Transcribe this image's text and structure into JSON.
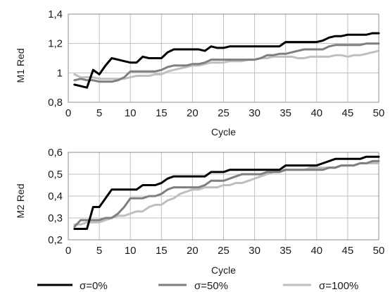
{
  "chart_data": [
    {
      "type": "line",
      "title": "",
      "xlabel": "Cycle",
      "ylabel": "M1 Red",
      "xlim": [
        0,
        50
      ],
      "ylim": [
        0.8,
        1.4
      ],
      "xticks": [
        "0",
        "5",
        "10",
        "15",
        "20",
        "25",
        "30",
        "35",
        "40",
        "45",
        "50"
      ],
      "yticks": [
        "0,8",
        "1",
        "1,2",
        "1,4"
      ],
      "grid": true,
      "series": [
        {
          "name": "σ=0%",
          "color": "#000000",
          "x": [
            1,
            2,
            3,
            4,
            5,
            6,
            7,
            8,
            9,
            10,
            11,
            12,
            13,
            14,
            15,
            16,
            17,
            18,
            19,
            20,
            21,
            22,
            23,
            24,
            25,
            26,
            27,
            28,
            29,
            30,
            31,
            32,
            33,
            34,
            35,
            36,
            37,
            38,
            39,
            40,
            41,
            42,
            43,
            44,
            45,
            46,
            47,
            48,
            49,
            50
          ],
          "y": [
            0.92,
            0.91,
            0.9,
            1.02,
            0.99,
            1.05,
            1.1,
            1.09,
            1.08,
            1.07,
            1.07,
            1.11,
            1.1,
            1.1,
            1.1,
            1.14,
            1.16,
            1.16,
            1.16,
            1.16,
            1.16,
            1.15,
            1.18,
            1.17,
            1.17,
            1.18,
            1.18,
            1.18,
            1.18,
            1.18,
            1.18,
            1.18,
            1.18,
            1.18,
            1.21,
            1.21,
            1.21,
            1.21,
            1.21,
            1.21,
            1.22,
            1.24,
            1.25,
            1.25,
            1.26,
            1.26,
            1.26,
            1.26,
            1.27,
            1.27
          ]
        },
        {
          "name": "σ=50%",
          "color": "#7f7f7f",
          "x": [
            1,
            2,
            3,
            4,
            5,
            6,
            7,
            8,
            9,
            10,
            11,
            12,
            13,
            14,
            15,
            16,
            17,
            18,
            19,
            20,
            21,
            22,
            23,
            24,
            25,
            26,
            27,
            28,
            29,
            30,
            31,
            32,
            33,
            34,
            35,
            36,
            37,
            38,
            39,
            40,
            41,
            42,
            43,
            44,
            45,
            46,
            47,
            48,
            49,
            50
          ],
          "y": [
            0.95,
            0.96,
            0.95,
            0.95,
            0.94,
            0.94,
            0.94,
            0.95,
            0.97,
            1.01,
            1.01,
            1.01,
            1.01,
            1.01,
            1.02,
            1.04,
            1.05,
            1.05,
            1.05,
            1.06,
            1.06,
            1.07,
            1.09,
            1.09,
            1.09,
            1.09,
            1.09,
            1.09,
            1.09,
            1.09,
            1.1,
            1.12,
            1.12,
            1.13,
            1.13,
            1.14,
            1.15,
            1.16,
            1.16,
            1.16,
            1.16,
            1.18,
            1.19,
            1.19,
            1.19,
            1.19,
            1.19,
            1.2,
            1.2,
            1.2
          ]
        },
        {
          "name": "σ=100%",
          "color": "#bfbfbf",
          "x": [
            1,
            2,
            3,
            4,
            5,
            6,
            7,
            8,
            9,
            10,
            11,
            12,
            13,
            14,
            15,
            16,
            17,
            18,
            19,
            20,
            21,
            22,
            23,
            24,
            25,
            26,
            27,
            28,
            29,
            30,
            31,
            32,
            33,
            34,
            35,
            36,
            37,
            38,
            39,
            40,
            41,
            42,
            43,
            44,
            45,
            46,
            47,
            48,
            49,
            50
          ],
          "y": [
            0.99,
            0.97,
            0.97,
            0.97,
            0.96,
            0.96,
            0.96,
            0.96,
            0.96,
            0.97,
            0.98,
            0.98,
            0.98,
            0.99,
            0.99,
            1.01,
            1.02,
            1.03,
            1.04,
            1.05,
            1.05,
            1.06,
            1.07,
            1.07,
            1.07,
            1.08,
            1.08,
            1.08,
            1.09,
            1.09,
            1.1,
            1.1,
            1.11,
            1.11,
            1.11,
            1.11,
            1.1,
            1.1,
            1.11,
            1.11,
            1.11,
            1.11,
            1.12,
            1.12,
            1.11,
            1.12,
            1.12,
            1.13,
            1.14,
            1.15
          ]
        }
      ]
    },
    {
      "type": "line",
      "title": "",
      "xlabel": "Cycle",
      "ylabel": "M2 Red",
      "xlim": [
        0,
        50
      ],
      "ylim": [
        0.2,
        0.6
      ],
      "xticks": [
        "0",
        "5",
        "10",
        "15",
        "20",
        "25",
        "30",
        "35",
        "40",
        "45",
        "50"
      ],
      "yticks": [
        "0,2",
        "0,3",
        "0,4",
        "0,5",
        "0,6"
      ],
      "grid": true,
      "series": [
        {
          "name": "σ=0%",
          "color": "#000000",
          "x": [
            1,
            2,
            3,
            4,
            5,
            6,
            7,
            8,
            9,
            10,
            11,
            12,
            13,
            14,
            15,
            16,
            17,
            18,
            19,
            20,
            21,
            22,
            23,
            24,
            25,
            26,
            27,
            28,
            29,
            30,
            31,
            32,
            33,
            34,
            35,
            36,
            37,
            38,
            39,
            40,
            41,
            42,
            43,
            44,
            45,
            46,
            47,
            48,
            49,
            50
          ],
          "y": [
            0.25,
            0.25,
            0.25,
            0.35,
            0.35,
            0.39,
            0.43,
            0.43,
            0.43,
            0.43,
            0.43,
            0.45,
            0.45,
            0.45,
            0.46,
            0.48,
            0.49,
            0.49,
            0.49,
            0.49,
            0.49,
            0.49,
            0.51,
            0.51,
            0.51,
            0.52,
            0.52,
            0.52,
            0.52,
            0.52,
            0.52,
            0.52,
            0.52,
            0.52,
            0.54,
            0.54,
            0.54,
            0.54,
            0.54,
            0.54,
            0.55,
            0.56,
            0.57,
            0.57,
            0.57,
            0.57,
            0.57,
            0.58,
            0.58,
            0.58
          ]
        },
        {
          "name": "σ=50%",
          "color": "#7f7f7f",
          "x": [
            1,
            2,
            3,
            4,
            5,
            6,
            7,
            8,
            9,
            10,
            11,
            12,
            13,
            14,
            15,
            16,
            17,
            18,
            19,
            20,
            21,
            22,
            23,
            24,
            25,
            26,
            27,
            28,
            29,
            30,
            31,
            32,
            33,
            34,
            35,
            36,
            37,
            38,
            39,
            40,
            41,
            42,
            43,
            44,
            45,
            46,
            47,
            48,
            49,
            50
          ],
          "y": [
            0.26,
            0.29,
            0.29,
            0.29,
            0.29,
            0.3,
            0.3,
            0.32,
            0.35,
            0.39,
            0.39,
            0.39,
            0.4,
            0.4,
            0.41,
            0.43,
            0.44,
            0.44,
            0.44,
            0.44,
            0.44,
            0.45,
            0.47,
            0.47,
            0.47,
            0.48,
            0.49,
            0.5,
            0.5,
            0.5,
            0.5,
            0.51,
            0.51,
            0.51,
            0.52,
            0.52,
            0.52,
            0.52,
            0.52,
            0.52,
            0.52,
            0.53,
            0.53,
            0.54,
            0.54,
            0.54,
            0.55,
            0.55,
            0.56,
            0.56
          ]
        },
        {
          "name": "σ=100%",
          "color": "#bfbfbf",
          "x": [
            1,
            2,
            3,
            4,
            5,
            6,
            7,
            8,
            9,
            10,
            11,
            12,
            13,
            14,
            15,
            16,
            17,
            18,
            19,
            20,
            21,
            22,
            23,
            24,
            25,
            26,
            27,
            28,
            29,
            30,
            31,
            32,
            33,
            34,
            35,
            36,
            37,
            38,
            39,
            40,
            41,
            42,
            43,
            44,
            45,
            46,
            47,
            48,
            49,
            50
          ],
          "y": [
            0.27,
            0.27,
            0.28,
            0.28,
            0.28,
            0.29,
            0.3,
            0.31,
            0.31,
            0.32,
            0.33,
            0.33,
            0.35,
            0.36,
            0.36,
            0.38,
            0.39,
            0.41,
            0.42,
            0.43,
            0.43,
            0.44,
            0.44,
            0.44,
            0.45,
            0.45,
            0.46,
            0.46,
            0.47,
            0.48,
            0.49,
            0.5,
            0.51,
            0.52,
            0.52,
            0.52,
            0.52,
            0.52,
            0.53,
            0.53,
            0.53,
            0.53,
            0.53,
            0.54,
            0.54,
            0.54,
            0.55,
            0.55,
            0.55,
            0.55
          ]
        }
      ]
    }
  ],
  "legend": {
    "placement": "bottom",
    "items": [
      {
        "label": "σ=0%",
        "color": "#000000"
      },
      {
        "label": "σ=50%",
        "color": "#7f7f7f"
      },
      {
        "label": "σ=100%",
        "color": "#bfbfbf"
      }
    ]
  }
}
